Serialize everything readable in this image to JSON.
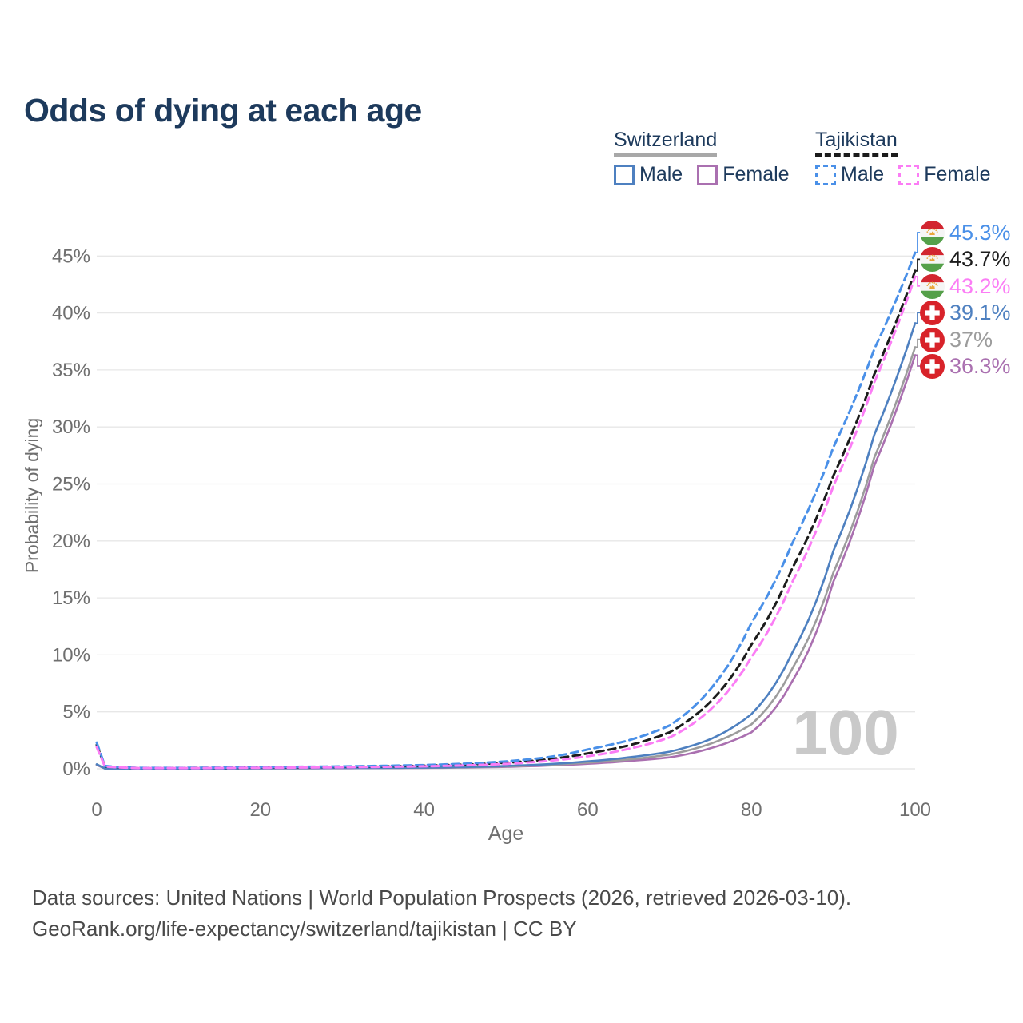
{
  "title": "Odds of dying at each age",
  "legend": {
    "groups": [
      {
        "label": "Switzerland",
        "line_style": "solid",
        "underline_color": "#a8a8a8",
        "items": [
          {
            "label": "Male",
            "color": "#4e80c0"
          },
          {
            "label": "Female",
            "color": "#aa70b0"
          }
        ]
      },
      {
        "label": "Tajikistan",
        "line_style": "dashed",
        "underline_color": "#1b1b1b",
        "items": [
          {
            "label": "Male",
            "color": "#4a90e8"
          },
          {
            "label": "Female",
            "color": "#fb7df5"
          }
        ]
      }
    ]
  },
  "chart_data": {
    "type": "line",
    "title": "Odds of dying at each age",
    "xlabel": "Age",
    "ylabel": "Probability of dying",
    "xlim": [
      0,
      100
    ],
    "ylim_percent": [
      0,
      47
    ],
    "x_ticks": [
      0,
      20,
      40,
      60,
      80,
      100
    ],
    "y_ticks": [
      "0%",
      "5%",
      "10%",
      "15%",
      "20%",
      "25%",
      "30%",
      "35%",
      "40%",
      "45%"
    ],
    "grid": true,
    "legend_position": "top-right",
    "age_counter": "100",
    "axis_color": "#6f6f6f",
    "grid_color": "#e7e7e7",
    "watermark_color": "#c9c9c9",
    "series": [
      {
        "id": "tajikistan-male",
        "country": "Tajikistan",
        "sex": "Male",
        "color": "#4a90e8",
        "dashed": true,
        "flag": "tajikistan",
        "end_label": "45.3%",
        "points": [
          [
            0,
            2.3
          ],
          [
            1,
            0.25
          ],
          [
            5,
            0.08
          ],
          [
            10,
            0.08
          ],
          [
            15,
            0.1
          ],
          [
            20,
            0.15
          ],
          [
            25,
            0.18
          ],
          [
            30,
            0.21
          ],
          [
            35,
            0.26
          ],
          [
            40,
            0.33
          ],
          [
            45,
            0.45
          ],
          [
            50,
            0.65
          ],
          [
            55,
            1.0
          ],
          [
            60,
            1.7
          ],
          [
            65,
            2.5
          ],
          [
            70,
            3.8
          ],
          [
            75,
            7.0
          ],
          [
            80,
            12.8
          ],
          [
            85,
            19.8
          ],
          [
            90,
            28.2
          ],
          [
            95,
            36.8
          ],
          [
            100,
            45.3
          ]
        ]
      },
      {
        "id": "tajikistan-total",
        "country": "Tajikistan",
        "sex": "Both",
        "color": "#1c1c1c",
        "dashed": true,
        "flag": "tajikistan",
        "end_label": "43.7%",
        "points": [
          [
            0,
            2.1
          ],
          [
            1,
            0.22
          ],
          [
            5,
            0.07
          ],
          [
            10,
            0.07
          ],
          [
            15,
            0.08
          ],
          [
            20,
            0.12
          ],
          [
            25,
            0.14
          ],
          [
            30,
            0.17
          ],
          [
            35,
            0.21
          ],
          [
            40,
            0.27
          ],
          [
            45,
            0.37
          ],
          [
            50,
            0.53
          ],
          [
            55,
            0.82
          ],
          [
            60,
            1.35
          ],
          [
            65,
            2.05
          ],
          [
            70,
            3.2
          ],
          [
            75,
            5.9
          ],
          [
            80,
            10.9
          ],
          [
            85,
            17.6
          ],
          [
            90,
            25.7
          ],
          [
            95,
            34.6
          ],
          [
            100,
            43.7
          ]
        ]
      },
      {
        "id": "tajikistan-female",
        "country": "Tajikistan",
        "sex": "Female",
        "color": "#fb7df5",
        "dashed": true,
        "flag": "tajikistan",
        "end_label": "43.2%",
        "points": [
          [
            0,
            1.9
          ],
          [
            1,
            0.2
          ],
          [
            5,
            0.06
          ],
          [
            10,
            0.06
          ],
          [
            15,
            0.07
          ],
          [
            20,
            0.09
          ],
          [
            25,
            0.11
          ],
          [
            30,
            0.13
          ],
          [
            35,
            0.17
          ],
          [
            40,
            0.22
          ],
          [
            45,
            0.3
          ],
          [
            50,
            0.43
          ],
          [
            55,
            0.68
          ],
          [
            60,
            1.1
          ],
          [
            65,
            1.75
          ],
          [
            70,
            2.75
          ],
          [
            75,
            5.2
          ],
          [
            80,
            9.8
          ],
          [
            85,
            16.4
          ],
          [
            90,
            24.8
          ],
          [
            95,
            33.9
          ],
          [
            100,
            43.2
          ]
        ]
      },
      {
        "id": "switzerland-male",
        "country": "Switzerland",
        "sex": "Male",
        "color": "#4e80c0",
        "dashed": false,
        "flag": "switzerland",
        "end_label": "39.1%",
        "points": [
          [
            0,
            0.4
          ],
          [
            1,
            0.03
          ],
          [
            5,
            0.01
          ],
          [
            10,
            0.01
          ],
          [
            15,
            0.02
          ],
          [
            20,
            0.05
          ],
          [
            25,
            0.06
          ],
          [
            30,
            0.07
          ],
          [
            35,
            0.08
          ],
          [
            40,
            0.1
          ],
          [
            45,
            0.15
          ],
          [
            50,
            0.25
          ],
          [
            55,
            0.4
          ],
          [
            60,
            0.65
          ],
          [
            65,
            1.0
          ],
          [
            70,
            1.5
          ],
          [
            75,
            2.6
          ],
          [
            80,
            4.8
          ],
          [
            85,
            10.2
          ],
          [
            90,
            19.1
          ],
          [
            95,
            29.3
          ],
          [
            100,
            39.1
          ]
        ]
      },
      {
        "id": "switzerland-total",
        "country": "Switzerland",
        "sex": "Both",
        "color": "#9c9c9c",
        "dashed": false,
        "flag": "switzerland",
        "end_label": "37%",
        "points": [
          [
            0,
            0.37
          ],
          [
            1,
            0.028
          ],
          [
            5,
            0.009
          ],
          [
            10,
            0.009
          ],
          [
            15,
            0.016
          ],
          [
            20,
            0.04
          ],
          [
            25,
            0.05
          ],
          [
            30,
            0.06
          ],
          [
            35,
            0.07
          ],
          [
            40,
            0.09
          ],
          [
            45,
            0.13
          ],
          [
            50,
            0.21
          ],
          [
            55,
            0.34
          ],
          [
            60,
            0.54
          ],
          [
            65,
            0.82
          ],
          [
            70,
            1.25
          ],
          [
            75,
            2.2
          ],
          [
            80,
            3.9
          ],
          [
            85,
            8.8
          ],
          [
            90,
            17.2
          ],
          [
            95,
            27.3
          ],
          [
            100,
            37.0
          ]
        ]
      },
      {
        "id": "switzerland-female",
        "country": "Switzerland",
        "sex": "Female",
        "color": "#aa70b0",
        "dashed": false,
        "flag": "switzerland",
        "end_label": "36.3%",
        "points": [
          [
            0,
            0.33
          ],
          [
            1,
            0.025
          ],
          [
            5,
            0.008
          ],
          [
            10,
            0.008
          ],
          [
            15,
            0.013
          ],
          [
            20,
            0.03
          ],
          [
            25,
            0.04
          ],
          [
            30,
            0.05
          ],
          [
            35,
            0.06
          ],
          [
            40,
            0.075
          ],
          [
            45,
            0.11
          ],
          [
            50,
            0.17
          ],
          [
            55,
            0.28
          ],
          [
            60,
            0.44
          ],
          [
            65,
            0.68
          ],
          [
            70,
            1.0
          ],
          [
            75,
            1.8
          ],
          [
            80,
            3.2
          ],
          [
            85,
            7.7
          ],
          [
            90,
            16.4
          ],
          [
            95,
            26.6
          ],
          [
            100,
            36.3
          ]
        ]
      }
    ]
  },
  "footer": {
    "line1": "Data sources: United Nations | World Population Prospects (2026, retrieved 2026-03-10).",
    "line2": "GeoRank.org/life-expectancy/switzerland/tajikistan | CC BY"
  }
}
